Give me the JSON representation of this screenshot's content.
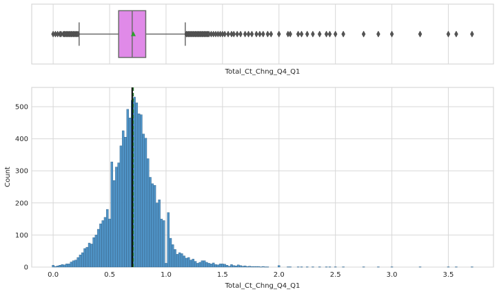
{
  "chart_data": [
    {
      "type": "box",
      "xlabel": "Total_Ct_Chng_Q4_Q1",
      "xlim": [
        -0.19,
        3.9
      ],
      "box": {
        "whisker_low": 0.23,
        "q1": 0.58,
        "median": 0.7,
        "mean": 0.71,
        "q3": 0.82,
        "whisker_high": 1.17
      },
      "outliers_low": [
        0.0,
        0.02,
        0.04,
        0.06,
        0.07,
        0.09,
        0.1,
        0.11,
        0.12,
        0.13,
        0.14,
        0.15,
        0.16,
        0.17,
        0.18,
        0.19,
        0.2,
        0.21,
        0.22
      ],
      "outliers_high": [
        1.18,
        1.19,
        1.2,
        1.21,
        1.22,
        1.23,
        1.24,
        1.25,
        1.26,
        1.27,
        1.28,
        1.29,
        1.3,
        1.31,
        1.32,
        1.33,
        1.34,
        1.35,
        1.36,
        1.37,
        1.38,
        1.4,
        1.42,
        1.44,
        1.46,
        1.48,
        1.5,
        1.52,
        1.55,
        1.58,
        1.6,
        1.63,
        1.66,
        1.7,
        1.73,
        1.76,
        1.8,
        1.83,
        1.86,
        1.9,
        1.93,
        2.0,
        2.08,
        2.1,
        2.17,
        2.2,
        2.25,
        2.3,
        2.36,
        2.42,
        2.45,
        2.5,
        2.57,
        2.75,
        2.88,
        3.0,
        3.25,
        3.5,
        3.57,
        3.71
      ],
      "colors": {
        "box": "#e08ae8",
        "edge": "#6a6a6a",
        "mean_marker": "#2ca02c",
        "flier": "#555555"
      }
    },
    {
      "type": "histogram",
      "xlabel": "Total_Ct_Chng_Q4_Q1",
      "ylabel": "Count",
      "xlim": [
        -0.19,
        3.9
      ],
      "ylim": [
        0,
        560
      ],
      "xticks": [
        "0.0",
        "0.5",
        "1.0",
        "1.5",
        "2.0",
        "2.5",
        "3.0",
        "3.5"
      ],
      "yticks": [
        "0",
        "100",
        "200",
        "300",
        "400",
        "500"
      ],
      "grid": true,
      "bin_width": 0.0185,
      "bins": [
        {
          "x": 0.0,
          "count": 6
        },
        {
          "x": 0.02,
          "count": 2
        },
        {
          "x": 0.04,
          "count": 4
        },
        {
          "x": 0.06,
          "count": 6
        },
        {
          "x": 0.08,
          "count": 8
        },
        {
          "x": 0.1,
          "count": 7
        },
        {
          "x": 0.12,
          "count": 10
        },
        {
          "x": 0.14,
          "count": 10
        },
        {
          "x": 0.16,
          "count": 16
        },
        {
          "x": 0.18,
          "count": 20
        },
        {
          "x": 0.2,
          "count": 22
        },
        {
          "x": 0.22,
          "count": 30
        },
        {
          "x": 0.24,
          "count": 38
        },
        {
          "x": 0.26,
          "count": 45
        },
        {
          "x": 0.28,
          "count": 58
        },
        {
          "x": 0.3,
          "count": 62
        },
        {
          "x": 0.32,
          "count": 75
        },
        {
          "x": 0.34,
          "count": 72
        },
        {
          "x": 0.36,
          "count": 92
        },
        {
          "x": 0.38,
          "count": 100
        },
        {
          "x": 0.4,
          "count": 118
        },
        {
          "x": 0.42,
          "count": 135
        },
        {
          "x": 0.44,
          "count": 145
        },
        {
          "x": 0.46,
          "count": 155
        },
        {
          "x": 0.48,
          "count": 180
        },
        {
          "x": 0.5,
          "count": 150
        },
        {
          "x": 0.52,
          "count": 328
        },
        {
          "x": 0.54,
          "count": 270
        },
        {
          "x": 0.56,
          "count": 312
        },
        {
          "x": 0.58,
          "count": 325
        },
        {
          "x": 0.6,
          "count": 378
        },
        {
          "x": 0.62,
          "count": 425
        },
        {
          "x": 0.64,
          "count": 405
        },
        {
          "x": 0.66,
          "count": 492
        },
        {
          "x": 0.68,
          "count": 465
        },
        {
          "x": 0.7,
          "count": 520
        },
        {
          "x": 0.72,
          "count": 530
        },
        {
          "x": 0.74,
          "count": 512
        },
        {
          "x": 0.76,
          "count": 478
        },
        {
          "x": 0.78,
          "count": 475
        },
        {
          "x": 0.8,
          "count": 415
        },
        {
          "x": 0.82,
          "count": 402
        },
        {
          "x": 0.84,
          "count": 338
        },
        {
          "x": 0.86,
          "count": 280
        },
        {
          "x": 0.88,
          "count": 260
        },
        {
          "x": 0.9,
          "count": 255
        },
        {
          "x": 0.92,
          "count": 200
        },
        {
          "x": 0.94,
          "count": 210
        },
        {
          "x": 0.96,
          "count": 150
        },
        {
          "x": 0.98,
          "count": 145
        },
        {
          "x": 1.0,
          "count": 12
        },
        {
          "x": 1.02,
          "count": 170
        },
        {
          "x": 1.04,
          "count": 90
        },
        {
          "x": 1.06,
          "count": 70
        },
        {
          "x": 1.08,
          "count": 55
        },
        {
          "x": 1.1,
          "count": 40
        },
        {
          "x": 1.12,
          "count": 45
        },
        {
          "x": 1.14,
          "count": 42
        },
        {
          "x": 1.16,
          "count": 35
        },
        {
          "x": 1.18,
          "count": 28
        },
        {
          "x": 1.2,
          "count": 30
        },
        {
          "x": 1.22,
          "count": 22
        },
        {
          "x": 1.24,
          "count": 25
        },
        {
          "x": 1.26,
          "count": 18
        },
        {
          "x": 1.28,
          "count": 12
        },
        {
          "x": 1.3,
          "count": 15
        },
        {
          "x": 1.32,
          "count": 20
        },
        {
          "x": 1.34,
          "count": 20
        },
        {
          "x": 1.36,
          "count": 15
        },
        {
          "x": 1.38,
          "count": 12
        },
        {
          "x": 1.4,
          "count": 10
        },
        {
          "x": 1.42,
          "count": 13
        },
        {
          "x": 1.44,
          "count": 8
        },
        {
          "x": 1.46,
          "count": 7
        },
        {
          "x": 1.48,
          "count": 10
        },
        {
          "x": 1.5,
          "count": 10
        },
        {
          "x": 1.52,
          "count": 9
        },
        {
          "x": 1.54,
          "count": 6
        },
        {
          "x": 1.56,
          "count": 3
        },
        {
          "x": 1.58,
          "count": 8
        },
        {
          "x": 1.6,
          "count": 5
        },
        {
          "x": 1.62,
          "count": 4
        },
        {
          "x": 1.64,
          "count": 7
        },
        {
          "x": 1.66,
          "count": 5
        },
        {
          "x": 1.68,
          "count": 3
        },
        {
          "x": 1.7,
          "count": 4
        },
        {
          "x": 1.72,
          "count": 2
        },
        {
          "x": 1.74,
          "count": 3
        },
        {
          "x": 1.76,
          "count": 2
        },
        {
          "x": 1.78,
          "count": 2
        },
        {
          "x": 1.8,
          "count": 2
        },
        {
          "x": 1.82,
          "count": 2
        },
        {
          "x": 1.84,
          "count": 1
        },
        {
          "x": 1.86,
          "count": 2
        },
        {
          "x": 1.88,
          "count": 1
        },
        {
          "x": 1.9,
          "count": 1
        },
        {
          "x": 2.0,
          "count": 5
        },
        {
          "x": 2.08,
          "count": 1
        },
        {
          "x": 2.1,
          "count": 1
        },
        {
          "x": 2.17,
          "count": 1
        },
        {
          "x": 2.2,
          "count": 1
        },
        {
          "x": 2.25,
          "count": 1
        },
        {
          "x": 2.3,
          "count": 1
        },
        {
          "x": 2.36,
          "count": 1
        },
        {
          "x": 2.42,
          "count": 1
        },
        {
          "x": 2.45,
          "count": 1
        },
        {
          "x": 2.5,
          "count": 1
        },
        {
          "x": 2.57,
          "count": 1
        },
        {
          "x": 2.75,
          "count": 1
        },
        {
          "x": 2.88,
          "count": 1
        },
        {
          "x": 3.0,
          "count": 1
        },
        {
          "x": 3.25,
          "count": 1
        },
        {
          "x": 3.5,
          "count": 1
        },
        {
          "x": 3.57,
          "count": 1
        },
        {
          "x": 3.71,
          "count": 1
        }
      ],
      "mean_line": 0.71,
      "median_line": 0.7,
      "colors": {
        "bar": "#4f93c6",
        "bar_edge": "#2f5f86",
        "mean_line": "#2e7d32",
        "median_line": "#000000",
        "grid": "#d7d7d7"
      }
    }
  ]
}
